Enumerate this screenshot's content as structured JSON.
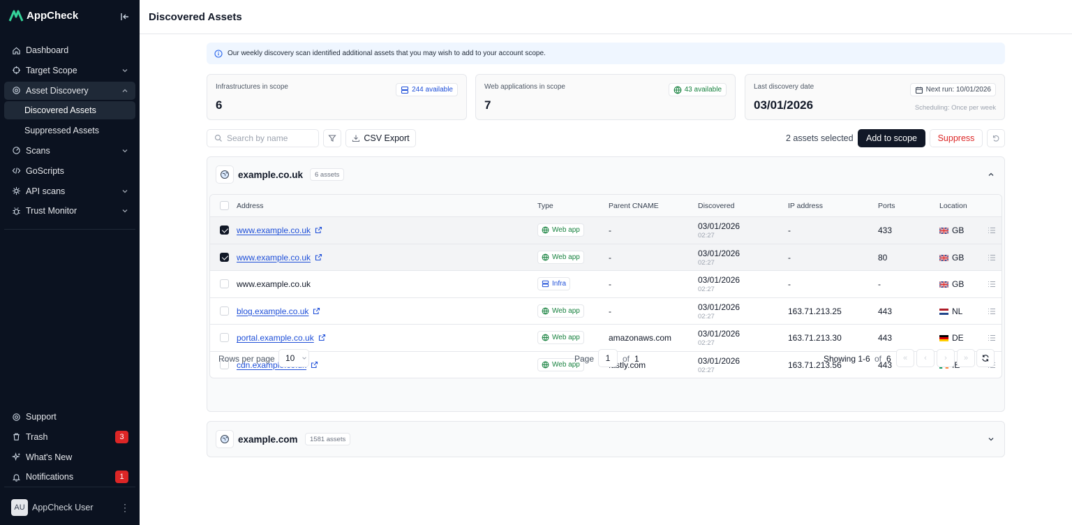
{
  "app": {
    "name": "AppCheck"
  },
  "sidebar": {
    "items": [
      {
        "label": "Dashboard"
      },
      {
        "label": "Target Scope"
      },
      {
        "label": "Asset Discovery"
      },
      {
        "label": "Discovered Assets"
      },
      {
        "label": "Suppressed Assets"
      },
      {
        "label": "Scans"
      },
      {
        "label": "GoScripts"
      },
      {
        "label": "API scans"
      },
      {
        "label": "Trust Monitor"
      }
    ],
    "bottom": [
      {
        "label": "Support"
      },
      {
        "label": "Trash",
        "badge": "3"
      },
      {
        "label": "What's New"
      },
      {
        "label": "Notifications",
        "badge": "1"
      }
    ],
    "user": {
      "initials": "AU",
      "name": "AppCheck User"
    }
  },
  "header": {
    "title": "Discovered Assets"
  },
  "info_banner": "Our weekly discovery scan identified additional assets that you may wish to add to your account scope.",
  "cards": {
    "infra": {
      "label": "Infrastructures in scope",
      "value": "6",
      "pill": "244 available"
    },
    "web": {
      "label": "Web applications in scope",
      "value": "7",
      "pill": "43 available"
    },
    "last": {
      "label": "Last discovery date",
      "value": "03/01/2026",
      "pill": "Next run: 10/01/2026",
      "schedule": "Scheduling: Once per week"
    }
  },
  "toolbar": {
    "search_placeholder": "Search by name",
    "csv_label": "CSV Export",
    "selected_text": "2 assets selected",
    "add_label": "Add to scope",
    "suppress_label": "Suppress"
  },
  "groups": [
    {
      "name": "example.co.uk",
      "count": "6 assets"
    },
    {
      "name": "example.com",
      "count": "1581 assets"
    }
  ],
  "table": {
    "headers": [
      "Address",
      "Type",
      "Parent CNAME",
      "Discovered",
      "IP address",
      "Ports",
      "Location"
    ],
    "rows": [
      {
        "address": "www.example.co.uk",
        "link": true,
        "checked": true,
        "type": "Web app",
        "cname": "-",
        "date": "03/01/2026",
        "time": "02:27",
        "ip": "-",
        "ports": "433",
        "location": "GB"
      },
      {
        "address": "www.example.co.uk",
        "link": true,
        "checked": true,
        "type": "Web app",
        "cname": "-",
        "date": "03/01/2026",
        "time": "02:27",
        "ip": "-",
        "ports": "80",
        "location": "GB"
      },
      {
        "address": "www.example.co.uk",
        "link": false,
        "checked": false,
        "type": "Infra",
        "cname": "-",
        "date": "03/01/2026",
        "time": "02:27",
        "ip": "-",
        "ports": "-",
        "location": "GB"
      },
      {
        "address": "blog.example.co.uk",
        "link": true,
        "checked": false,
        "type": "Web app",
        "cname": "-",
        "date": "03/01/2026",
        "time": "02:27",
        "ip": "163.71.213.25",
        "ports": "443",
        "location": "NL"
      },
      {
        "address": "portal.example.co.uk",
        "link": true,
        "checked": false,
        "type": "Web app",
        "cname": "amazonaws.com",
        "date": "03/01/2026",
        "time": "02:27",
        "ip": "163.71.213.30",
        "ports": "443",
        "location": "DE"
      },
      {
        "address": "cdn.example.co.uk",
        "link": true,
        "checked": false,
        "type": "Web app",
        "cname": "fastly.com",
        "date": "03/01/2026",
        "time": "02:27",
        "ip": "163.71.213.56",
        "ports": "443",
        "location": "IE"
      }
    ]
  },
  "pagination": {
    "rows_label": "Rows per page",
    "rows_value": "10",
    "page_label": "Page",
    "page_value": "1",
    "of_label": "of",
    "total_pages": "1",
    "showing_text": "Showing 1-6",
    "total_items": "6"
  }
}
